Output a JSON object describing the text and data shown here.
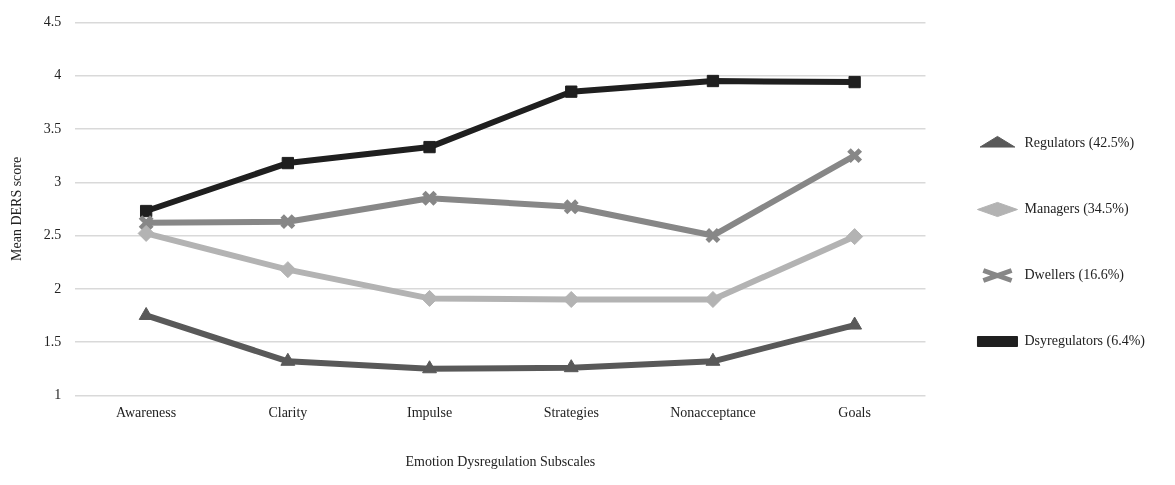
{
  "chart_data": {
    "type": "line",
    "xlabel": "Emotion Dysregulation Subscales",
    "ylabel": "Mean DERS score",
    "categories": [
      "Awareness",
      "Clarity",
      "Impulse",
      "Strategies",
      "Nonacceptance",
      "Goals"
    ],
    "series": [
      {
        "name": "Regulators (42.5%)",
        "color": "#595959",
        "marker": "triangle",
        "values": [
          1.75,
          1.32,
          1.25,
          1.26,
          1.32,
          1.66
        ]
      },
      {
        "name": "Managers (34.5%)",
        "color": "#b3b3b3",
        "marker": "diamond",
        "values": [
          2.52,
          2.18,
          1.91,
          1.9,
          1.9,
          2.49
        ]
      },
      {
        "name": "Dwellers (16.6%)",
        "color": "#878787",
        "marker": "cross",
        "values": [
          2.62,
          2.63,
          2.85,
          2.77,
          2.5,
          3.25
        ]
      },
      {
        "name": "Dsyregulators (6.4%)",
        "color": "#1f1f1f",
        "marker": "square",
        "values": [
          2.73,
          3.18,
          3.33,
          3.85,
          3.95,
          3.94
        ]
      }
    ],
    "ylim": [
      1,
      4.5
    ],
    "yticks": [
      1,
      1.5,
      2,
      2.5,
      3,
      3.5,
      4,
      4.5
    ],
    "grid": "y",
    "legend": "right",
    "line_style": "solid"
  }
}
